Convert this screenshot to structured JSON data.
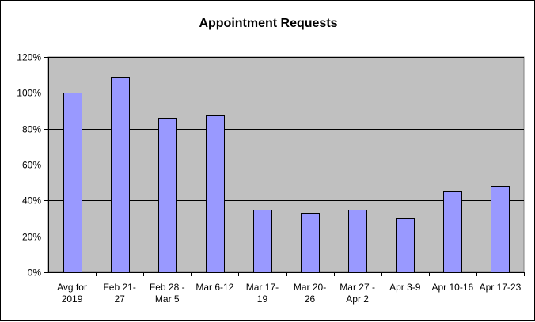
{
  "chart_data": {
    "type": "bar",
    "title": "Appointment Requests",
    "categories": [
      [
        "Avg for",
        "2019"
      ],
      [
        "Feb 21-",
        "27"
      ],
      [
        "Feb 28 -",
        "Mar 5"
      ],
      [
        "Mar 6-12"
      ],
      [
        "Mar 17-",
        "19"
      ],
      [
        "Mar 20-",
        "26"
      ],
      [
        "Mar 27 -",
        "Apr 2"
      ],
      [
        "Apr 3-9"
      ],
      [
        "Apr 10-16"
      ],
      [
        "Apr 17-23"
      ]
    ],
    "values": [
      100,
      109,
      86,
      88,
      35,
      33,
      35,
      30,
      45,
      48
    ],
    "ylim": [
      0,
      120
    ],
    "yticks": [
      0,
      20,
      40,
      60,
      80,
      100,
      120
    ],
    "ytick_labels": [
      "0%",
      "20%",
      "40%",
      "60%",
      "80%",
      "100%",
      "120%"
    ],
    "xlabel": "",
    "ylabel": "",
    "grid": true,
    "legend": "none",
    "colors": {
      "bar_fill": "#9999FF",
      "bar_stroke": "#000000",
      "plot_background": "#C0C0C0",
      "gridline": "#000000"
    }
  }
}
